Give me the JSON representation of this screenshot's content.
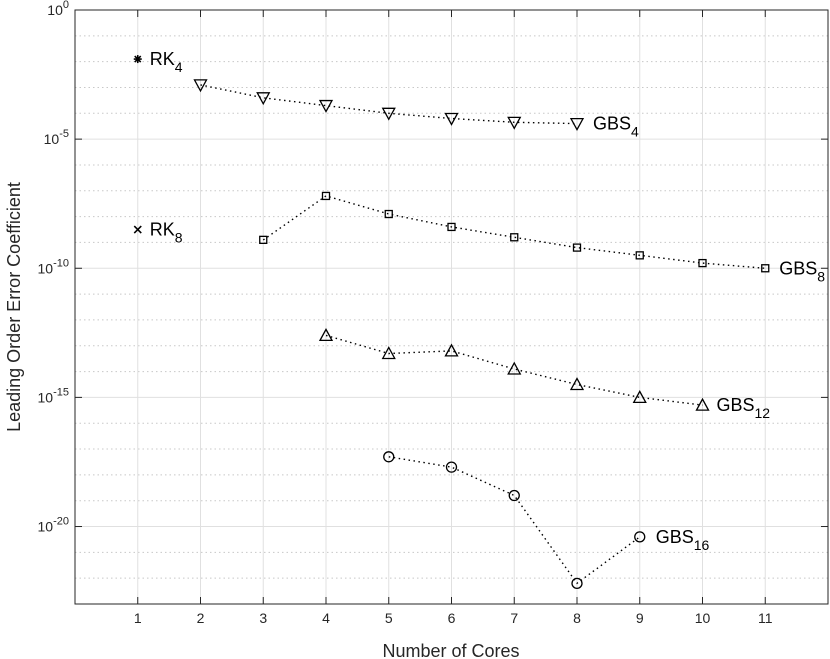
{
  "chart_data": {
    "type": "scatter",
    "title": "",
    "xlabel": "Number of Cores",
    "ylabel": "Leading Order Error Coefficient",
    "xlim": [
      0,
      12
    ],
    "ylim_log10": [
      -23,
      0
    ],
    "yscale": "log",
    "grid": true,
    "x_ticks": [
      1,
      2,
      3,
      4,
      5,
      6,
      7,
      8,
      9,
      10,
      11
    ],
    "y_ticks": [
      {
        "base": "10",
        "exp": "0",
        "log10": 0
      },
      {
        "base": "10",
        "exp": "-5",
        "log10": -5
      },
      {
        "base": "10",
        "exp": "-10",
        "log10": -10
      },
      {
        "base": "10",
        "exp": "-15",
        "log10": -15
      },
      {
        "base": "10",
        "exp": "-20",
        "log10": -20
      }
    ],
    "series": [
      {
        "name": "RK4",
        "label_main": "RK",
        "label_sub": "4",
        "marker": "asterisk",
        "line": false,
        "points": [
          {
            "x": 1,
            "log10y": -1.9
          }
        ]
      },
      {
        "name": "RK8",
        "label_main": "RK",
        "label_sub": "8",
        "marker": "x",
        "line": false,
        "points": [
          {
            "x": 1,
            "log10y": -8.5
          }
        ]
      },
      {
        "name": "GBS4",
        "label_main": "GBS",
        "label_sub": "4",
        "marker": "triangle-down",
        "line": true,
        "points": [
          {
            "x": 2,
            "log10y": -2.9
          },
          {
            "x": 3,
            "log10y": -3.4
          },
          {
            "x": 4,
            "log10y": -3.7
          },
          {
            "x": 5,
            "log10y": -4.0
          },
          {
            "x": 6,
            "log10y": -4.2
          },
          {
            "x": 7,
            "log10y": -4.35
          },
          {
            "x": 8,
            "log10y": -4.4
          }
        ]
      },
      {
        "name": "GBS8",
        "label_main": "GBS",
        "label_sub": "8",
        "marker": "square",
        "line": true,
        "points": [
          {
            "x": 3,
            "log10y": -8.9
          },
          {
            "x": 4,
            "log10y": -7.2
          },
          {
            "x": 5,
            "log10y": -7.9
          },
          {
            "x": 6,
            "log10y": -8.4
          },
          {
            "x": 7,
            "log10y": -8.8
          },
          {
            "x": 8,
            "log10y": -9.2
          },
          {
            "x": 9,
            "log10y": -9.5
          },
          {
            "x": 10,
            "log10y": -9.8
          },
          {
            "x": 11,
            "log10y": -10.0
          }
        ]
      },
      {
        "name": "GBS12",
        "label_main": "GBS",
        "label_sub": "12",
        "marker": "triangle-up",
        "line": true,
        "points": [
          {
            "x": 4,
            "log10y": -12.6
          },
          {
            "x": 5,
            "log10y": -13.3
          },
          {
            "x": 6,
            "log10y": -13.2
          },
          {
            "x": 7,
            "log10y": -13.9
          },
          {
            "x": 8,
            "log10y": -14.5
          },
          {
            "x": 9,
            "log10y": -15.0
          },
          {
            "x": 10,
            "log10y": -15.3
          }
        ]
      },
      {
        "name": "GBS16",
        "label_main": "GBS",
        "label_sub": "16",
        "marker": "circle",
        "line": true,
        "points": [
          {
            "x": 5,
            "log10y": -17.3
          },
          {
            "x": 6,
            "log10y": -17.7
          },
          {
            "x": 7,
            "log10y": -18.8
          },
          {
            "x": 8,
            "log10y": -22.2
          },
          {
            "x": 9,
            "log10y": -20.4
          }
        ]
      }
    ]
  }
}
